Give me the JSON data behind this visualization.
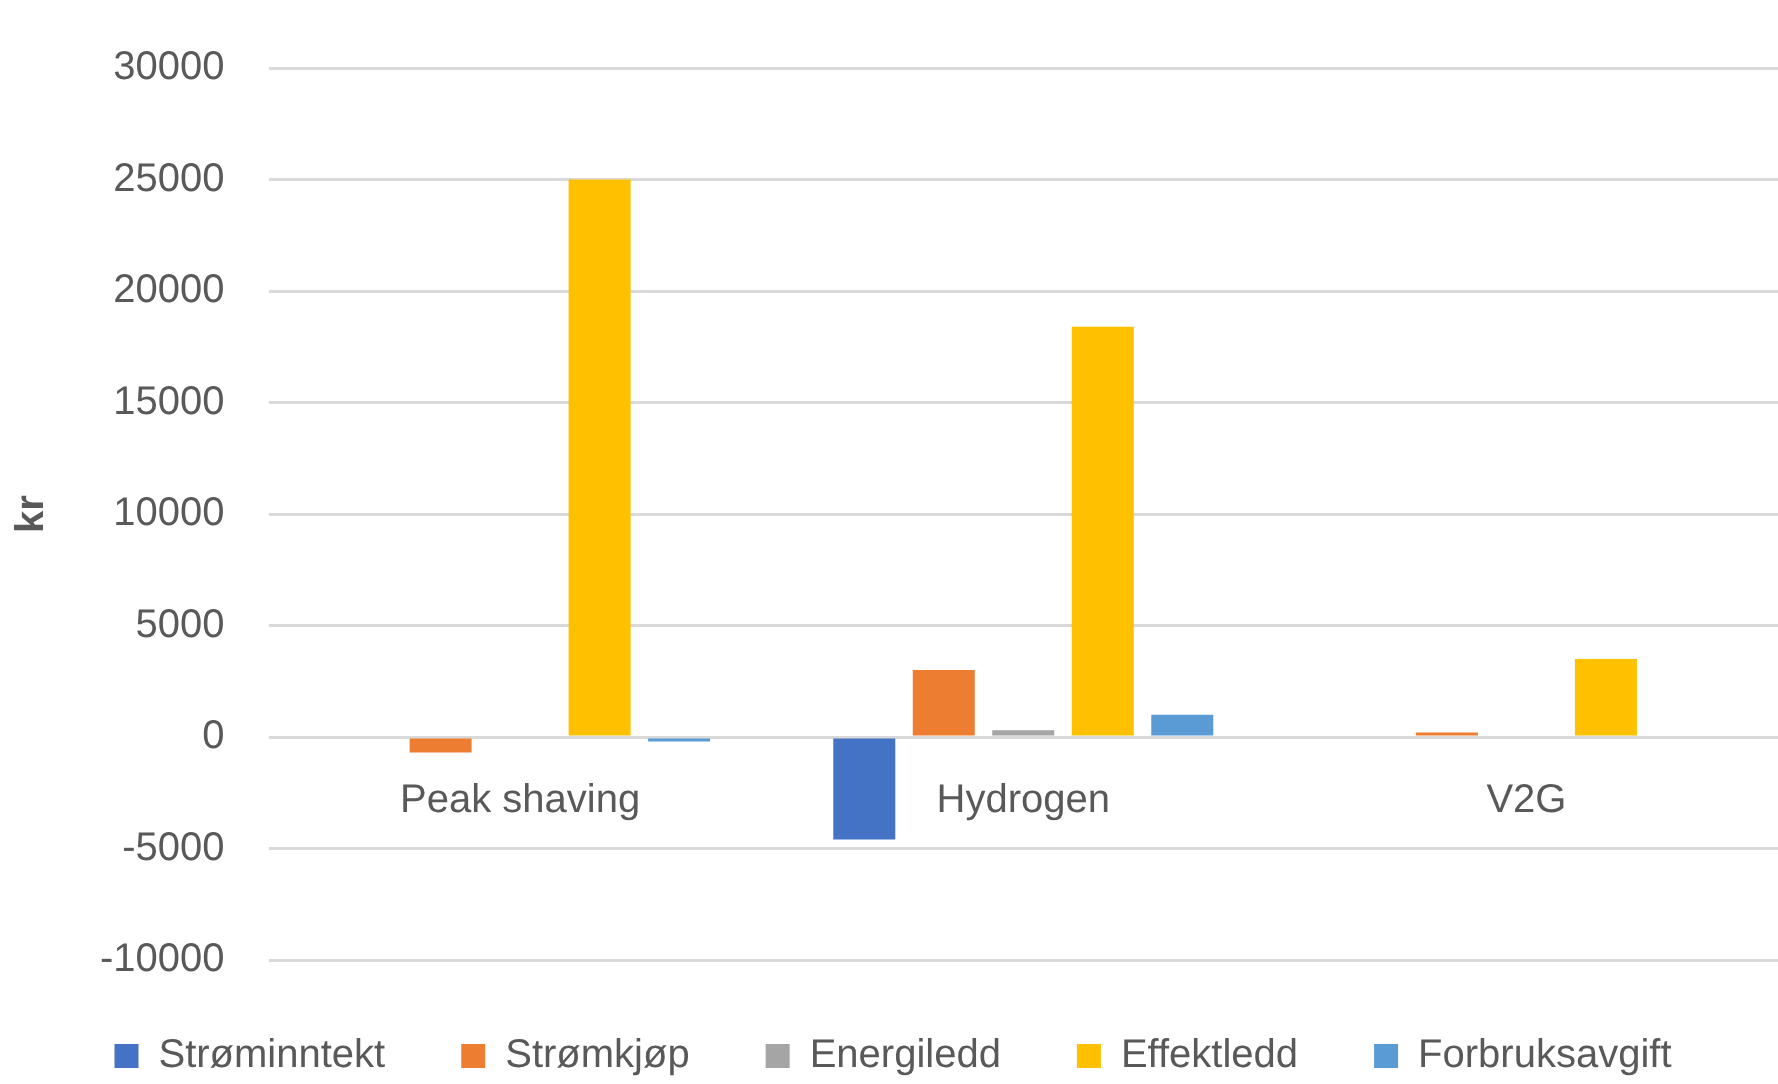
{
  "chart_data": {
    "type": "bar",
    "ylabel": "kr",
    "categories": [
      "Peak shaving",
      "Hydrogen",
      "V2G"
    ],
    "series": [
      {
        "name": "Strøminntekt",
        "color": "#4472c4",
        "values": [
          null,
          -4600,
          null
        ]
      },
      {
        "name": "Strømkjøp",
        "color": "#ed7d31",
        "values": [
          -700,
          3000,
          200
        ]
      },
      {
        "name": "Energiledd",
        "color": "#a5a5a5",
        "values": [
          null,
          300,
          null
        ]
      },
      {
        "name": "Effektledd",
        "color": "#ffc000",
        "values": [
          25000,
          18400,
          3500
        ]
      },
      {
        "name": "Forbruksavgift",
        "color": "#5b9bd5",
        "values": [
          -200,
          1000,
          null
        ]
      }
    ],
    "ylim": [
      -10000,
      30000
    ],
    "yticks": [
      -10000,
      -5000,
      0,
      5000,
      10000,
      15000,
      20000,
      25000,
      30000
    ],
    "grid": "y",
    "legend": "bottom"
  }
}
